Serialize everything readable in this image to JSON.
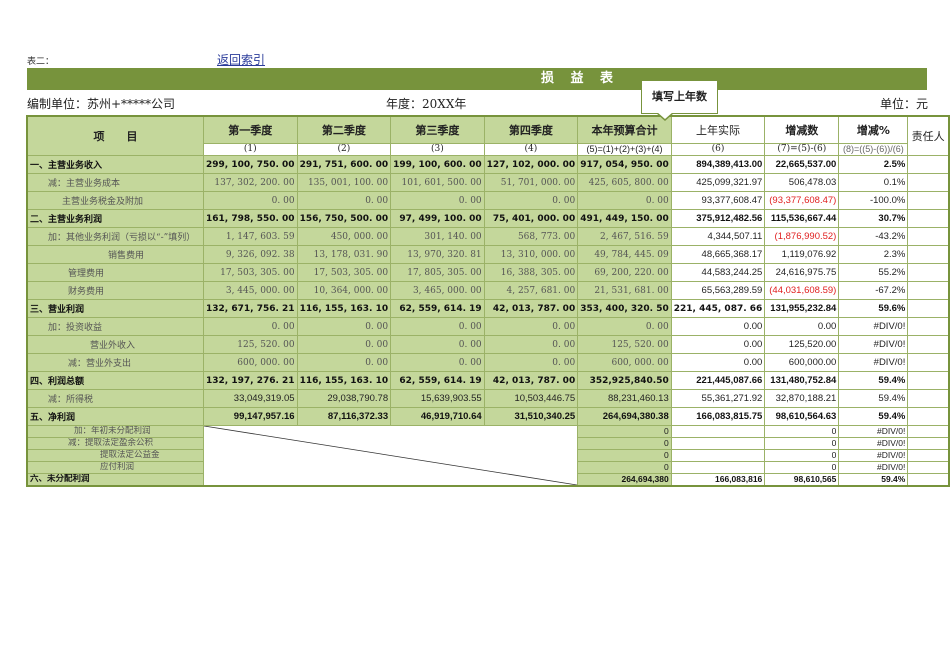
{
  "header": {
    "table_label": "表二：",
    "back_link": "返回索引",
    "title": "损 益 表",
    "org": "编制单位：苏州+*****公司",
    "year": "年度：20XX年",
    "unit": "单位：元",
    "callout": "填写上年数"
  },
  "colors": {
    "band": "#77933c",
    "cell_green": "#c4d79b",
    "negative": "#e02020"
  },
  "columns": {
    "item": "项　　目",
    "labels": [
      "第一季度",
      "第二季度",
      "第三季度",
      "第四季度",
      "本年预算合计",
      "上年实际",
      "增减数",
      "增减%",
      "责任人"
    ],
    "codes": [
      "(1)",
      "(2)",
      "(3)",
      "(4)",
      "(5)=(1)+(2)+(3)+(4)",
      "(6)",
      "(7)=(5)-(6)",
      "(8)=((5)-(6))/(6)"
    ]
  },
  "rows": [
    {
      "label": "一、主营业务收入",
      "indent": 0,
      "bold": true,
      "v": [
        "299, 100, 750. 00",
        "291, 751, 600. 00",
        "199, 100, 600. 00",
        "127, 102, 000. 00",
        "917, 054, 950. 00",
        "894,389,413.00",
        "22,665,537.00",
        "2.5%"
      ]
    },
    {
      "label": "减：主营业务成本",
      "indent": 18,
      "v": [
        "137, 302, 200. 00",
        "135, 001, 100. 00",
        "101, 601, 500. 00",
        "51, 701, 000. 00",
        "425, 605, 800. 00",
        "425,099,321.97",
        "506,478.03",
        "0.1%"
      ]
    },
    {
      "label": "主营业务税金及附加",
      "indent": 32,
      "v": [
        "0. 00",
        "0. 00",
        "0. 00",
        "0. 00",
        "0. 00",
        "93,377,608.47",
        "(93,377,608.47)",
        "-100.0%"
      ],
      "neg": true
    },
    {
      "label": "二、主营业务利润",
      "indent": 0,
      "bold": true,
      "v": [
        "161, 798, 550. 00",
        "156, 750, 500. 00",
        "97, 499, 100. 00",
        "75, 401, 000. 00",
        "491, 449, 150. 00",
        "375,912,482.56",
        "115,536,667.44",
        "30.7%"
      ]
    },
    {
      "label": "加：其他业务利润（亏损以“-”填列）",
      "indent": 18,
      "v": [
        "1, 147, 603. 59",
        "450, 000. 00",
        "301, 140. 00",
        "568, 773. 00",
        "2, 467, 516. 59",
        "4,344,507.11",
        "(1,876,990.52)",
        "-43.2%"
      ],
      "neg": true
    },
    {
      "label": "销售费用",
      "indent": 78,
      "v": [
        "9, 326, 092. 38",
        "13, 178, 031. 90",
        "13, 970, 320. 81",
        "13, 310, 000. 00",
        "49, 784, 445. 09",
        "48,665,368.17",
        "1,119,076.92",
        "2.3%"
      ]
    },
    {
      "label": "管理费用",
      "indent": 38,
      "v": [
        "17, 503, 305. 00",
        "17, 503, 305. 00",
        "17, 805, 305. 00",
        "16, 388, 305. 00",
        "69, 200, 220. 00",
        "44,583,244.25",
        "24,616,975.75",
        "55.2%"
      ]
    },
    {
      "label": "财务费用",
      "indent": 38,
      "v": [
        "3, 445, 000. 00",
        "10, 364, 000. 00",
        "3, 465, 000. 00",
        "4, 257, 681. 00",
        "21, 531, 681. 00",
        "65,563,289.59",
        "(44,031,608.59)",
        "-67.2%"
      ],
      "neg": true
    },
    {
      "label": "三、营业利润",
      "indent": 0,
      "bold": true,
      "v": [
        "132, 671, 756. 21",
        "116, 155, 163. 10",
        "62, 559, 614. 19",
        "42, 013, 787. 00",
        "353, 400, 320. 50",
        "221, 445, 087. 66",
        "131,955,232.84",
        "59.6%"
      ]
    },
    {
      "label": "加：投资收益",
      "indent": 18,
      "v": [
        "0. 00",
        "0. 00",
        "0. 00",
        "0. 00",
        "0. 00",
        "0.00",
        "0.00",
        "#DIV/0!"
      ]
    },
    {
      "label": "营业外收入",
      "indent": 60,
      "v": [
        "125, 520. 00",
        "0. 00",
        "0. 00",
        "0. 00",
        "125, 520. 00",
        "0.00",
        "125,520.00",
        "#DIV/0!"
      ]
    },
    {
      "label": "减：营业外支出",
      "indent": 38,
      "v": [
        "600, 000. 00",
        "0. 00",
        "0. 00",
        "0. 00",
        "600, 000. 00",
        "0.00",
        "600,000.00",
        "#DIV/0!"
      ]
    },
    {
      "label": "四、利润总额",
      "indent": 0,
      "bold": true,
      "v": [
        "132, 197, 276. 21",
        "116, 155, 163. 10",
        "62, 559, 614. 19",
        "42, 013, 787. 00",
        "352,925,840.50",
        "221,445,087.66",
        "131,480,752.84",
        "59.4%"
      ]
    },
    {
      "label": "减：所得税",
      "indent": 18,
      "sans": true,
      "v": [
        "33,049,319.05",
        "29,038,790.78",
        "15,639,903.55",
        "10,503,446.75",
        "88,231,460.13",
        "55,361,271.92",
        "32,870,188.21",
        "59.4%"
      ]
    },
    {
      "label": "五、净利润",
      "indent": 0,
      "bold": true,
      "sans": true,
      "v": [
        "99,147,957.16",
        "87,116,372.33",
        "46,919,710.64",
        "31,510,340.25",
        "264,694,380.38",
        "166,083,815.75",
        "98,610,564.63",
        "59.4%"
      ]
    }
  ],
  "small_rows": [
    {
      "label": "加：年初未分配利润",
      "indent": 44,
      "v": [
        "0",
        "",
        "0",
        "#DIV/0!"
      ]
    },
    {
      "label": "减：提取法定盈余公积",
      "indent": 38,
      "v": [
        "0",
        "",
        "0",
        "#DIV/0!"
      ]
    },
    {
      "label": "提取法定公益金",
      "indent": 70,
      "v": [
        "0",
        "",
        "0",
        "#DIV/0!"
      ]
    },
    {
      "label": "应付利润",
      "indent": 70,
      "v": [
        "0",
        "",
        "0",
        "#DIV/0!"
      ]
    },
    {
      "label": "六、未分配利润",
      "indent": 0,
      "bold": true,
      "v": [
        "264,694,380",
        "166,083,816",
        "98,610,565",
        "59.4%"
      ]
    }
  ]
}
